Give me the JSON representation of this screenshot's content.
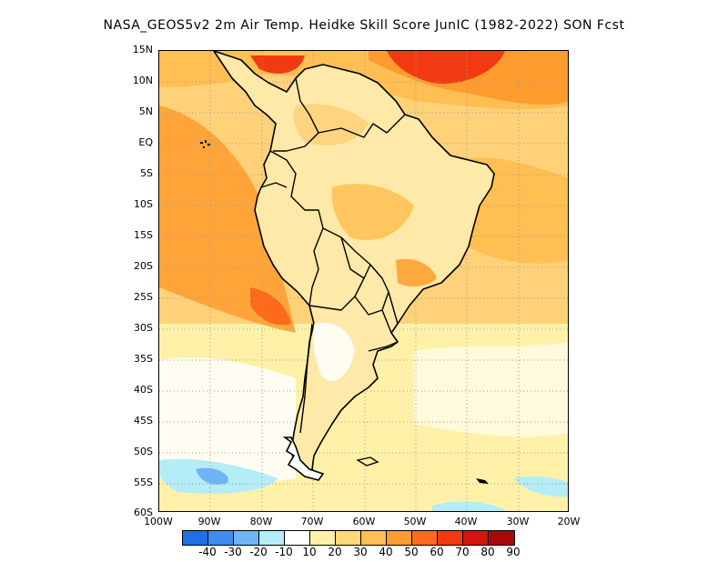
{
  "title": "NASA_GEOS5v2  2m Air Temp. Heidke Skill Score JunIC (1982-2022) SON Fcst",
  "lat_labels": [
    "15N",
    "10N",
    "5N",
    "EQ",
    "5S",
    "10S",
    "15S",
    "20S",
    "25S",
    "30S",
    "35S",
    "40S",
    "45S",
    "50S",
    "55S",
    "60S"
  ],
  "lon_labels": [
    "100W",
    "90W",
    "80W",
    "70W",
    "60W",
    "50W",
    "40W",
    "30W",
    "20W"
  ],
  "colorbar": {
    "labels": [
      "-40",
      "-30",
      "-20",
      "-10",
      "10",
      "20",
      "30",
      "40",
      "50",
      "60",
      "70",
      "80",
      "90"
    ],
    "colors": [
      "#1f6fe6",
      "#3d8cf0",
      "#6fb4f7",
      "#b4ecf7",
      "#ffffff",
      "#fff2a8",
      "#ffd97a",
      "#ffbf52",
      "#ff9c2e",
      "#ff6a1a",
      "#f23a12",
      "#d4160c",
      "#a8080a"
    ]
  },
  "colors": {
    "continent_outline": "#000000",
    "grid": "#9a9a9a",
    "ocean_base": "#ffd27a",
    "hot": "#ff6a1a",
    "cool": "#b4ecf7"
  }
}
